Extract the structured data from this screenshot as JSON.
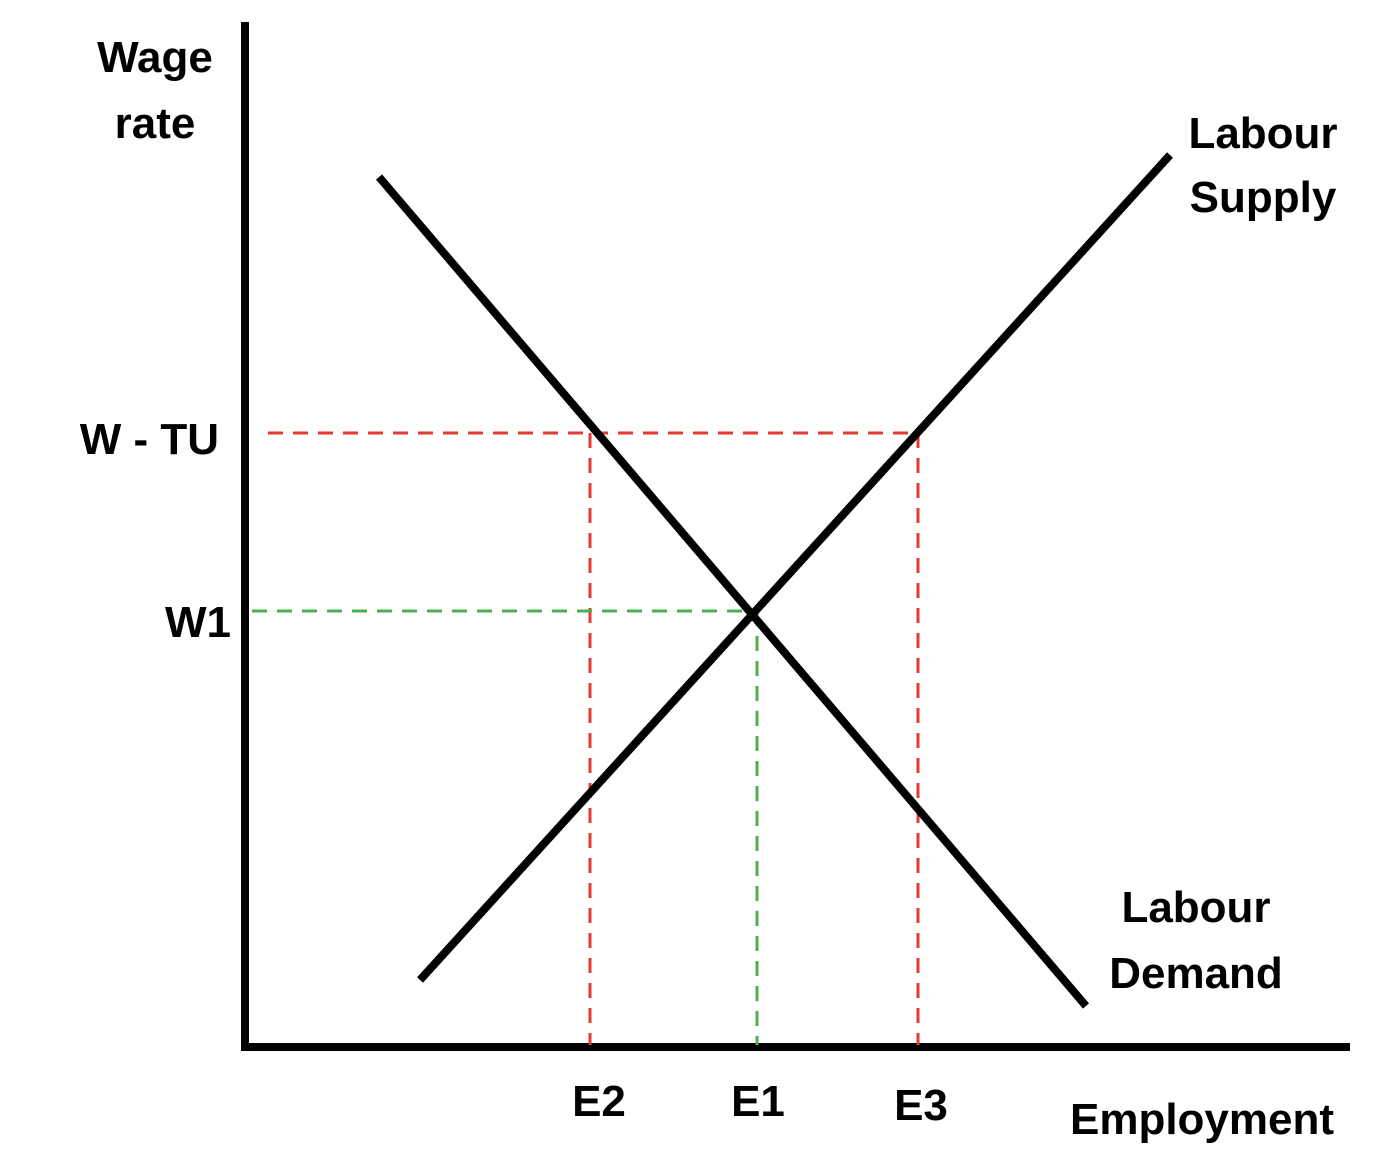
{
  "axes": {
    "y_label_line1": "Wage",
    "y_label_line2": "rate",
    "x_label": "Employment"
  },
  "curves": {
    "supply_label_line1": "Labour",
    "supply_label_line2": "Supply",
    "demand_label_line1": "Labour",
    "demand_label_line2": "Demand"
  },
  "wage_levels": {
    "union_wage": "W - TU",
    "equilibrium_wage": "W1"
  },
  "employment_levels": {
    "e1": "E1",
    "e2": "E2",
    "e3": "E3"
  },
  "colors": {
    "curve": "#000000",
    "union_guides": "#e53935",
    "equilibrium_guides": "#4caf50"
  }
}
